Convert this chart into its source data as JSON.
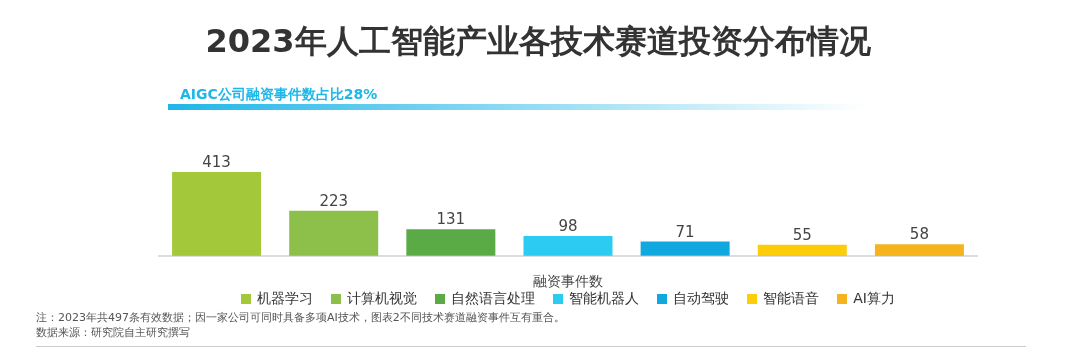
{
  "chart_data": {
    "type": "bar",
    "title": "2023年人工智能产业各技术赛道投资分布情况",
    "xlabel": "融资事件数",
    "categories": [
      null,
      null,
      null,
      null,
      null,
      null,
      null
    ],
    "stacked": true,
    "data_labels": true,
    "legend": "bottom",
    "series": [
      {
        "name": "机器学习",
        "color": "#a3c93a",
        "values": [
          413,
          null,
          null,
          null,
          null,
          null,
          null
        ]
      },
      {
        "name": "计算机视觉",
        "color": "#8cc04a",
        "values": [
          null,
          223,
          null,
          null,
          null,
          null,
          null
        ]
      },
      {
        "name": "自然语言处理",
        "color": "#5aaa46",
        "values": [
          null,
          null,
          131,
          null,
          null,
          null,
          null
        ]
      },
      {
        "name": "智能机器人",
        "color": "#2ccbf2",
        "values": [
          null,
          null,
          null,
          98,
          null,
          null,
          null
        ]
      },
      {
        "name": "自动驾驶",
        "color": "#10a8df",
        "values": [
          null,
          null,
          null,
          null,
          71,
          null,
          null
        ]
      },
      {
        "name": "智能语音",
        "color": "#fdcd0a",
        "values": [
          null,
          null,
          null,
          null,
          null,
          55,
          null
        ]
      },
      {
        "name": "AI算力",
        "color": "#f5b41e",
        "values": [
          null,
          null,
          null,
          null,
          null,
          null,
          58
        ]
      }
    ],
    "annotations": [
      "AIGC公司融资事件数占比28%",
      "注：2023年共497条有效数据；因一家公司可同时具备多项AI技术，图表2不同技术赛道融资事件互有重合。",
      "数据来源：研究院自主研究撰写"
    ]
  }
}
